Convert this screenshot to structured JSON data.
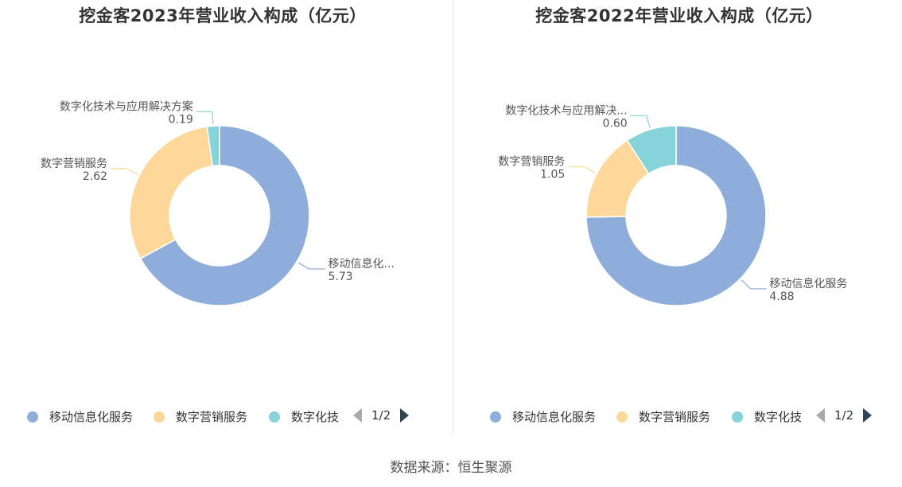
{
  "colors": [
    "#8eadda",
    "#fdd89a",
    "#86d4d9"
  ],
  "charts": [
    {
      "title": "挖金客2023年营业收入构成（亿元）",
      "legend": [
        "移动信息化服务",
        "数字营销服务",
        "数字化技"
      ],
      "pager": "1/2"
    },
    {
      "title": "挖金客2022年营业收入构成（亿元）",
      "legend": [
        "移动信息化服务",
        "数字营销服务",
        "数字化技"
      ],
      "pager": "1/2"
    }
  ],
  "chart_data": [
    {
      "type": "pie",
      "title": "挖金客2023年营业收入构成（亿元）",
      "donut": true,
      "slices": [
        {
          "name": "移动信息化服务",
          "label": "移动信息化...",
          "value": 5.73,
          "value_text": "5.73"
        },
        {
          "name": "数字营销服务",
          "label": "数字营销服务",
          "value": 2.62,
          "value_text": "2.62"
        },
        {
          "name": "数字化技术与应用解决方案",
          "label": "数字化技术与应用解决方案",
          "value": 0.19,
          "value_text": "0.19"
        }
      ]
    },
    {
      "type": "pie",
      "title": "挖金客2022年营业收入构成（亿元）",
      "donut": true,
      "slices": [
        {
          "name": "移动信息化服务",
          "label": "移动信息化服务",
          "value": 4.88,
          "value_text": "4.88"
        },
        {
          "name": "数字营销服务",
          "label": "数字营销服务",
          "value": 1.05,
          "value_text": "1.05"
        },
        {
          "name": "数字化技术与应用解决方案",
          "label": "数字化技术与应用解决...",
          "value": 0.6,
          "value_text": "0.60"
        }
      ]
    }
  ],
  "source": "数据来源：恒生聚源"
}
